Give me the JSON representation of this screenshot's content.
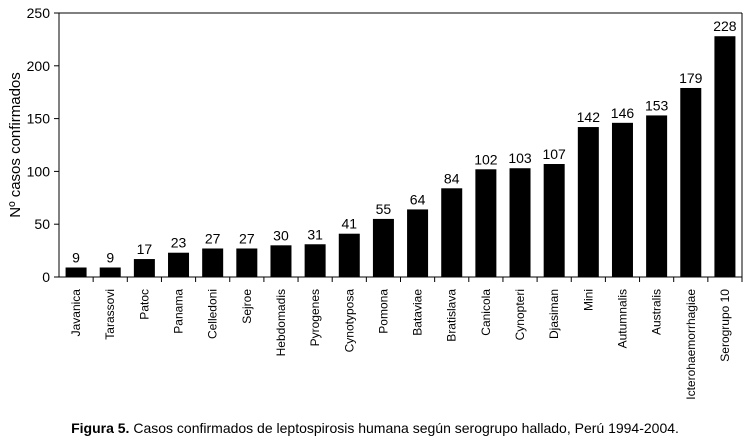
{
  "chart_data": {
    "type": "bar",
    "ylabel": "Nº casos confirmados",
    "ylim": [
      0,
      250
    ],
    "yticks": [
      0,
      50,
      100,
      150,
      200,
      250
    ],
    "grid": false,
    "categories": [
      "Javanica",
      "Tarassovi",
      "Patoc",
      "Panama",
      "Celledoni",
      "Sejroe",
      "Hebdomadis",
      "Pyrogenes",
      "Cynotyposa",
      "Pomona",
      "Bataviae",
      "Bratislava",
      "Canicola",
      "Cynopteri",
      "Djasiman",
      "Mini",
      "Autumnalis",
      "Australis",
      "Icterohaemorrhagiae",
      "Serogrupo 10"
    ],
    "values": [
      9,
      9,
      17,
      23,
      27,
      27,
      30,
      31,
      41,
      55,
      64,
      84,
      102,
      103,
      107,
      142,
      146,
      153,
      179,
      228
    ],
    "colors": {
      "bar": "#000000",
      "axis": "#000000"
    }
  },
  "caption": {
    "lead": "Figura 5.",
    "text": "Casos confirmados de leptospirosis humana según serogrupo hallado, Perú 1994-2004."
  }
}
